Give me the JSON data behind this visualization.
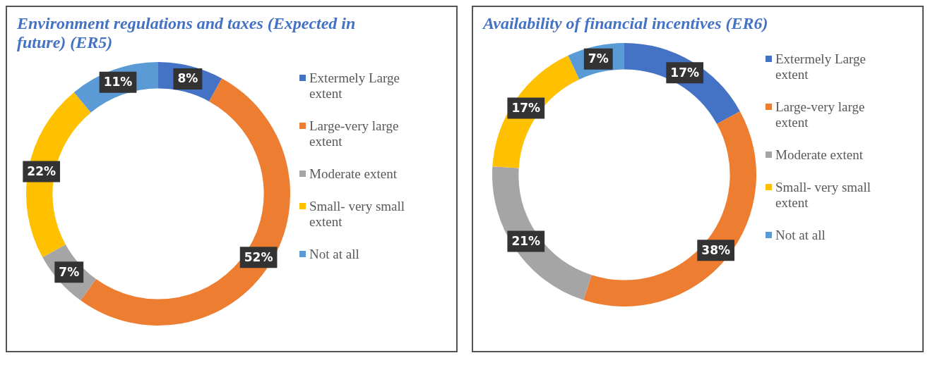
{
  "chart_data": [
    {
      "type": "donut",
      "title": "Environment regulations and taxes (Expected in future) (ER5)",
      "categories": [
        "Extermely Large extent",
        "Large-very large extent",
        "Moderate extent",
        "Small- very small extent",
        "Not at all"
      ],
      "values": [
        8,
        52,
        7,
        22,
        11
      ],
      "value_labels": [
        "8%",
        "52%",
        "7%",
        "22%",
        "11%"
      ],
      "colors": [
        "#4472c4",
        "#ed7d31",
        "#a5a5a5",
        "#ffc000",
        "#5b9bd5"
      ],
      "legend": "right"
    },
    {
      "type": "donut",
      "title": "Availability of financial incentives (ER6)",
      "categories": [
        "Extermely Large extent",
        "Large-very large extent",
        "Moderate extent",
        "Small- very small extent",
        "Not at all"
      ],
      "values": [
        17,
        38,
        21,
        17,
        7
      ],
      "value_labels": [
        "17%",
        "38%",
        "21%",
        "17%",
        "7%"
      ],
      "colors": [
        "#4472c4",
        "#ed7d31",
        "#a5a5a5",
        "#ffc000",
        "#5b9bd5"
      ],
      "legend": "right"
    }
  ]
}
